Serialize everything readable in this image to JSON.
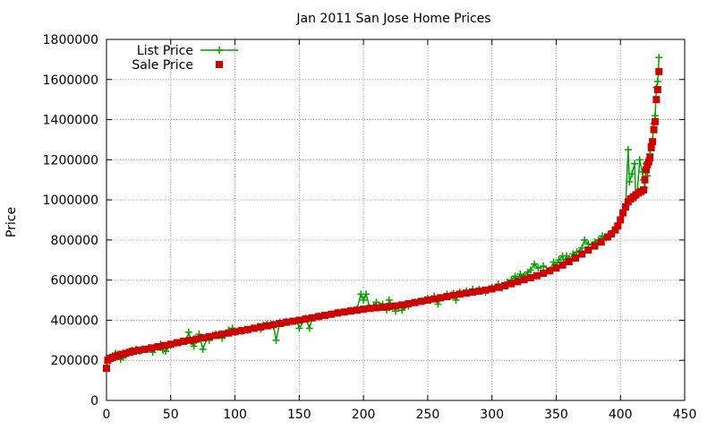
{
  "chart_data": {
    "type": "line",
    "title": "Jan 2011 San Jose Home Prices",
    "ylabel": "Price",
    "xlabel": "",
    "xlim": [
      0,
      450
    ],
    "ylim": [
      0,
      1800000
    ],
    "xticks": [
      0,
      50,
      100,
      150,
      200,
      250,
      300,
      350,
      400,
      450
    ],
    "yticks": [
      0,
      200000,
      400000,
      600000,
      800000,
      1000000,
      1200000,
      1400000,
      1600000,
      1800000
    ],
    "grid": true,
    "legend_position": "top-left",
    "colors": {
      "list": "#00a000",
      "sale": "#cc0000"
    },
    "series": [
      {
        "name": "List Price",
        "style": "line-with-plus-markers",
        "points": [
          [
            0,
            160000
          ],
          [
            1,
            205000
          ],
          [
            3,
            210000
          ],
          [
            5,
            220000
          ],
          [
            7,
            235000
          ],
          [
            9,
            230000
          ],
          [
            11,
            205000
          ],
          [
            13,
            215000
          ],
          [
            15,
            225000
          ],
          [
            18,
            245000
          ],
          [
            20,
            250000
          ],
          [
            23,
            255000
          ],
          [
            26,
            245000
          ],
          [
            30,
            255000
          ],
          [
            33,
            262000
          ],
          [
            36,
            240000
          ],
          [
            40,
            265000
          ],
          [
            42,
            280000
          ],
          [
            44,
            250000
          ],
          [
            46,
            245000
          ],
          [
            50,
            275000
          ],
          [
            54,
            285000
          ],
          [
            58,
            290000
          ],
          [
            62,
            300000
          ],
          [
            64,
            340000
          ],
          [
            66,
            295000
          ],
          [
            68,
            270000
          ],
          [
            70,
            300000
          ],
          [
            72,
            330000
          ],
          [
            75,
            255000
          ],
          [
            78,
            310000
          ],
          [
            80,
            300000
          ],
          [
            85,
            330000
          ],
          [
            90,
            310000
          ],
          [
            95,
            350000
          ],
          [
            98,
            360000
          ],
          [
            100,
            340000
          ],
          [
            105,
            345000
          ],
          [
            110,
            350000
          ],
          [
            115,
            360000
          ],
          [
            118,
            370000
          ],
          [
            120,
            355000
          ],
          [
            122,
            375000
          ],
          [
            125,
            380000
          ],
          [
            128,
            375000
          ],
          [
            130,
            370000
          ],
          [
            132,
            300000
          ],
          [
            135,
            390000
          ],
          [
            138,
            385000
          ],
          [
            140,
            395000
          ],
          [
            145,
            395000
          ],
          [
            148,
            400000
          ],
          [
            150,
            360000
          ],
          [
            155,
            410000
          ],
          [
            158,
            360000
          ],
          [
            160,
            410000
          ],
          [
            165,
            420000
          ],
          [
            170,
            425000
          ],
          [
            175,
            430000
          ],
          [
            180,
            440000
          ],
          [
            185,
            440000
          ],
          [
            190,
            450000
          ],
          [
            195,
            455000
          ],
          [
            198,
            530000
          ],
          [
            200,
            500000
          ],
          [
            202,
            530000
          ],
          [
            205,
            460000
          ],
          [
            208,
            470000
          ],
          [
            210,
            490000
          ],
          [
            215,
            480000
          ],
          [
            218,
            450000
          ],
          [
            220,
            500000
          ],
          [
            225,
            445000
          ],
          [
            230,
            450000
          ],
          [
            235,
            470000
          ],
          [
            240,
            490000
          ],
          [
            245,
            495000
          ],
          [
            250,
            510000
          ],
          [
            255,
            520000
          ],
          [
            258,
            480000
          ],
          [
            260,
            510000
          ],
          [
            265,
            530000
          ],
          [
            270,
            535000
          ],
          [
            272,
            500000
          ],
          [
            275,
            540000
          ],
          [
            280,
            545000
          ],
          [
            285,
            555000
          ],
          [
            290,
            555000
          ],
          [
            295,
            540000
          ],
          [
            300,
            565000
          ],
          [
            305,
            580000
          ],
          [
            308,
            560000
          ],
          [
            312,
            590000
          ],
          [
            315,
            600000
          ],
          [
            318,
            620000
          ],
          [
            320,
            600000
          ],
          [
            322,
            630000
          ],
          [
            325,
            620000
          ],
          [
            328,
            640000
          ],
          [
            330,
            650000
          ],
          [
            333,
            680000
          ],
          [
            336,
            660000
          ],
          [
            340,
            670000
          ],
          [
            345,
            650000
          ],
          [
            348,
            690000
          ],
          [
            350,
            670000
          ],
          [
            352,
            700000
          ],
          [
            355,
            720000
          ],
          [
            356,
            690000
          ],
          [
            358,
            720000
          ],
          [
            360,
            700000
          ],
          [
            363,
            730000
          ],
          [
            366,
            740000
          ],
          [
            370,
            760000
          ],
          [
            372,
            800000
          ],
          [
            375,
            780000
          ],
          [
            378,
            775000
          ],
          [
            380,
            790000
          ],
          [
            383,
            800000
          ],
          [
            386,
            820000
          ],
          [
            389,
            810000
          ],
          [
            392,
            830000
          ],
          [
            395,
            845000
          ],
          [
            398,
            870000
          ],
          [
            400,
            900000
          ],
          [
            402,
            940000
          ],
          [
            404,
            970000
          ],
          [
            406,
            1250000
          ],
          [
            407,
            1090000
          ],
          [
            409,
            1130000
          ],
          [
            411,
            1180000
          ],
          [
            412,
            1010000
          ],
          [
            413,
            1030000
          ],
          [
            415,
            1200000
          ],
          [
            417,
            1140000
          ],
          [
            418,
            1100000
          ],
          [
            419,
            1060000
          ],
          [
            420,
            1180000
          ],
          [
            421,
            1120000
          ],
          [
            422,
            1200000
          ],
          [
            423,
            1230000
          ],
          [
            424,
            1280000
          ],
          [
            425,
            1300000
          ],
          [
            426,
            1380000
          ],
          [
            427,
            1420000
          ],
          [
            428,
            1560000
          ],
          [
            429,
            1590000
          ],
          [
            430,
            1710000
          ]
        ]
      },
      {
        "name": "Sale Price",
        "style": "square-markers",
        "points": [
          [
            0,
            160000
          ],
          [
            1,
            200000
          ],
          [
            3,
            210000
          ],
          [
            5,
            215000
          ],
          [
            7,
            220000
          ],
          [
            9,
            225000
          ],
          [
            12,
            230000
          ],
          [
            15,
            235000
          ],
          [
            18,
            240000
          ],
          [
            21,
            245000
          ],
          [
            25,
            250000
          ],
          [
            30,
            255000
          ],
          [
            35,
            262000
          ],
          [
            40,
            268000
          ],
          [
            45,
            274000
          ],
          [
            50,
            280000
          ],
          [
            55,
            288000
          ],
          [
            60,
            295000
          ],
          [
            65,
            300000
          ],
          [
            70,
            306000
          ],
          [
            75,
            312000
          ],
          [
            80,
            318000
          ],
          [
            85,
            324000
          ],
          [
            90,
            330000
          ],
          [
            95,
            336000
          ],
          [
            100,
            342000
          ],
          [
            105,
            348000
          ],
          [
            110,
            354000
          ],
          [
            115,
            360000
          ],
          [
            120,
            366000
          ],
          [
            125,
            372000
          ],
          [
            130,
            378000
          ],
          [
            135,
            384000
          ],
          [
            140,
            390000
          ],
          [
            145,
            395000
          ],
          [
            150,
            400000
          ],
          [
            155,
            406000
          ],
          [
            160,
            412000
          ],
          [
            165,
            418000
          ],
          [
            170,
            424000
          ],
          [
            175,
            430000
          ],
          [
            180,
            436000
          ],
          [
            185,
            441000
          ],
          [
            190,
            446000
          ],
          [
            195,
            450000
          ],
          [
            200,
            455000
          ],
          [
            205,
            459000
          ],
          [
            210,
            462000
          ],
          [
            215,
            465000
          ],
          [
            220,
            468000
          ],
          [
            225,
            471000
          ],
          [
            230,
            476000
          ],
          [
            235,
            482000
          ],
          [
            240,
            488000
          ],
          [
            245,
            494000
          ],
          [
            250,
            500000
          ],
          [
            255,
            506000
          ],
          [
            260,
            512000
          ],
          [
            265,
            518000
          ],
          [
            270,
            524000
          ],
          [
            275,
            530000
          ],
          [
            280,
            535000
          ],
          [
            285,
            540000
          ],
          [
            290,
            545000
          ],
          [
            295,
            550000
          ],
          [
            300,
            556000
          ],
          [
            305,
            564000
          ],
          [
            310,
            572000
          ],
          [
            315,
            582000
          ],
          [
            320,
            592000
          ],
          [
            325,
            602000
          ],
          [
            330,
            612000
          ],
          [
            335,
            622000
          ],
          [
            340,
            634000
          ],
          [
            345,
            646000
          ],
          [
            350,
            660000
          ],
          [
            355,
            675000
          ],
          [
            360,
            692000
          ],
          [
            365,
            710000
          ],
          [
            370,
            730000
          ],
          [
            375,
            750000
          ],
          [
            380,
            770000
          ],
          [
            385,
            790000
          ],
          [
            390,
            815000
          ],
          [
            393,
            830000
          ],
          [
            396,
            850000
          ],
          [
            398,
            870000
          ],
          [
            400,
            900000
          ],
          [
            402,
            935000
          ],
          [
            404,
            965000
          ],
          [
            406,
            990000
          ],
          [
            408,
            1005000
          ],
          [
            410,
            1015000
          ],
          [
            412,
            1025000
          ],
          [
            414,
            1035000
          ],
          [
            416,
            1042000
          ],
          [
            418,
            1050000
          ],
          [
            419,
            1100000
          ],
          [
            420,
            1150000
          ],
          [
            421,
            1175000
          ],
          [
            422,
            1190000
          ],
          [
            423,
            1210000
          ],
          [
            424,
            1260000
          ],
          [
            425,
            1290000
          ],
          [
            426,
            1350000
          ],
          [
            427,
            1390000
          ],
          [
            428,
            1500000
          ],
          [
            429,
            1550000
          ],
          [
            430,
            1640000
          ]
        ]
      }
    ]
  }
}
